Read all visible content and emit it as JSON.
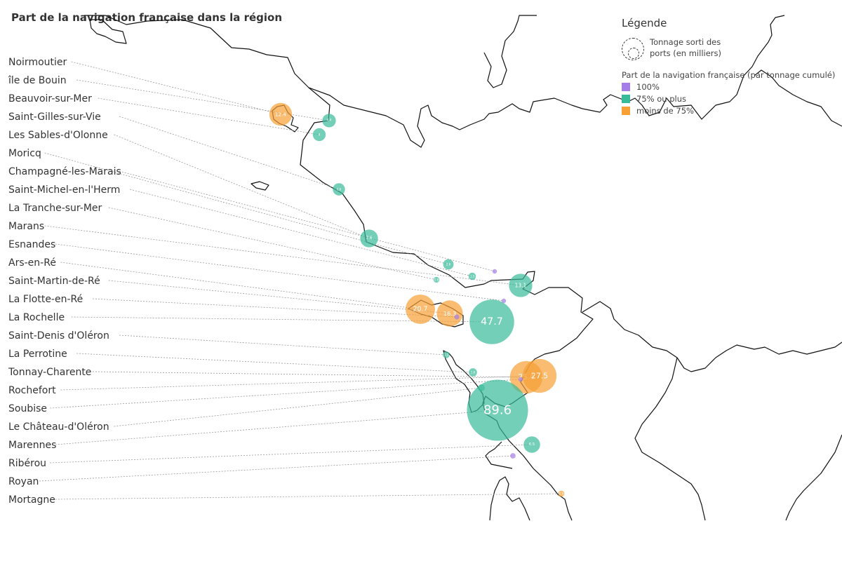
{
  "title": "Part de la navigation française dans la région",
  "legend": {
    "title": "Légende",
    "size_label": "Tonnage sorti des ports (en milliers)",
    "share_label": "Part de la navigation française (par tonnage cumulé)",
    "categories": [
      {
        "label": "100%",
        "color": "#a47ee6"
      },
      {
        "label": "75% ou plus",
        "color": "#38bb98"
      },
      {
        "label": "moins de 75%",
        "color": "#f7a035"
      }
    ]
  },
  "ports": [
    {
      "name": "Noirmoutier",
      "tonnage": 12.4,
      "category": 2,
      "label": "12.4"
    },
    {
      "name": "île de Bouin",
      "tonnage": 4.4,
      "category": 1,
      "label": "4.4"
    },
    {
      "name": "Beauvoir-sur-Mer",
      "tonnage": 4,
      "category": 1,
      "label": "4"
    },
    {
      "name": "Saint-Gilles-sur-Vie",
      "tonnage": 3.6,
      "category": 1,
      "label": "3.6"
    },
    {
      "name": "Les Sables-d'Olonne",
      "tonnage": 7.6,
      "category": 1,
      "label": "7.6"
    },
    {
      "name": "Moricq",
      "tonnage": 2.6,
      "category": 1,
      "label": "2.6"
    },
    {
      "name": "Champagné-les-Marais",
      "tonnage": 0.5,
      "category": 0,
      "label": ""
    },
    {
      "name": "Saint-Michel-en-l'Herm",
      "tonnage": 1.3,
      "category": 1,
      "label": "1.3"
    },
    {
      "name": "La Tranche-sur-Mer",
      "tonnage": 0.8,
      "category": 1,
      "label": "0.8"
    },
    {
      "name": "Marans",
      "tonnage": 13.1,
      "category": 1,
      "label": "13.1"
    },
    {
      "name": "Esnandes",
      "tonnage": 0.5,
      "category": 0,
      "label": ""
    },
    {
      "name": "Ars-en-Ré",
      "tonnage": 20.7,
      "category": 2,
      "label": "20.7"
    },
    {
      "name": "Saint-Martin-de-Ré",
      "tonnage": 16.3,
      "category": 2,
      "label": "16.3"
    },
    {
      "name": "La Flotte-en-Ré",
      "tonnage": 0.6,
      "category": 0,
      "label": ""
    },
    {
      "name": "La Rochelle",
      "tonnage": 47.7,
      "category": 1,
      "label": "47.7"
    },
    {
      "name": "Saint-Denis d'Oléron",
      "tonnage": 1.1,
      "category": 1,
      "label": "1.1"
    },
    {
      "name": "La Perrotine",
      "tonnage": 1.6,
      "category": 1,
      "label": "1.6"
    },
    {
      "name": "Tonnay-Charente",
      "tonnage": 25.4,
      "category": 2,
      "label": "25.4"
    },
    {
      "name": "Rochefort",
      "tonnage": 27.5,
      "category": 2,
      "label": "27.5"
    },
    {
      "name": "Soubise",
      "tonnage": 0.5,
      "category": 0,
      "label": ""
    },
    {
      "name": "Le Château-d'Oléron",
      "tonnage": 1.1,
      "category": 1,
      "label": "1.1"
    },
    {
      "name": "Marennes",
      "tonnage": 89.6,
      "category": 1,
      "label": "89.6"
    },
    {
      "name": "Ribérou",
      "tonnage": 6.5,
      "category": 1,
      "label": "6.5"
    },
    {
      "name": "Royan",
      "tonnage": 0.7,
      "category": 0,
      "label": ""
    },
    {
      "name": "Mortagne",
      "tonnage": 0.9,
      "category": 2,
      "label": "0.9"
    }
  ]
}
